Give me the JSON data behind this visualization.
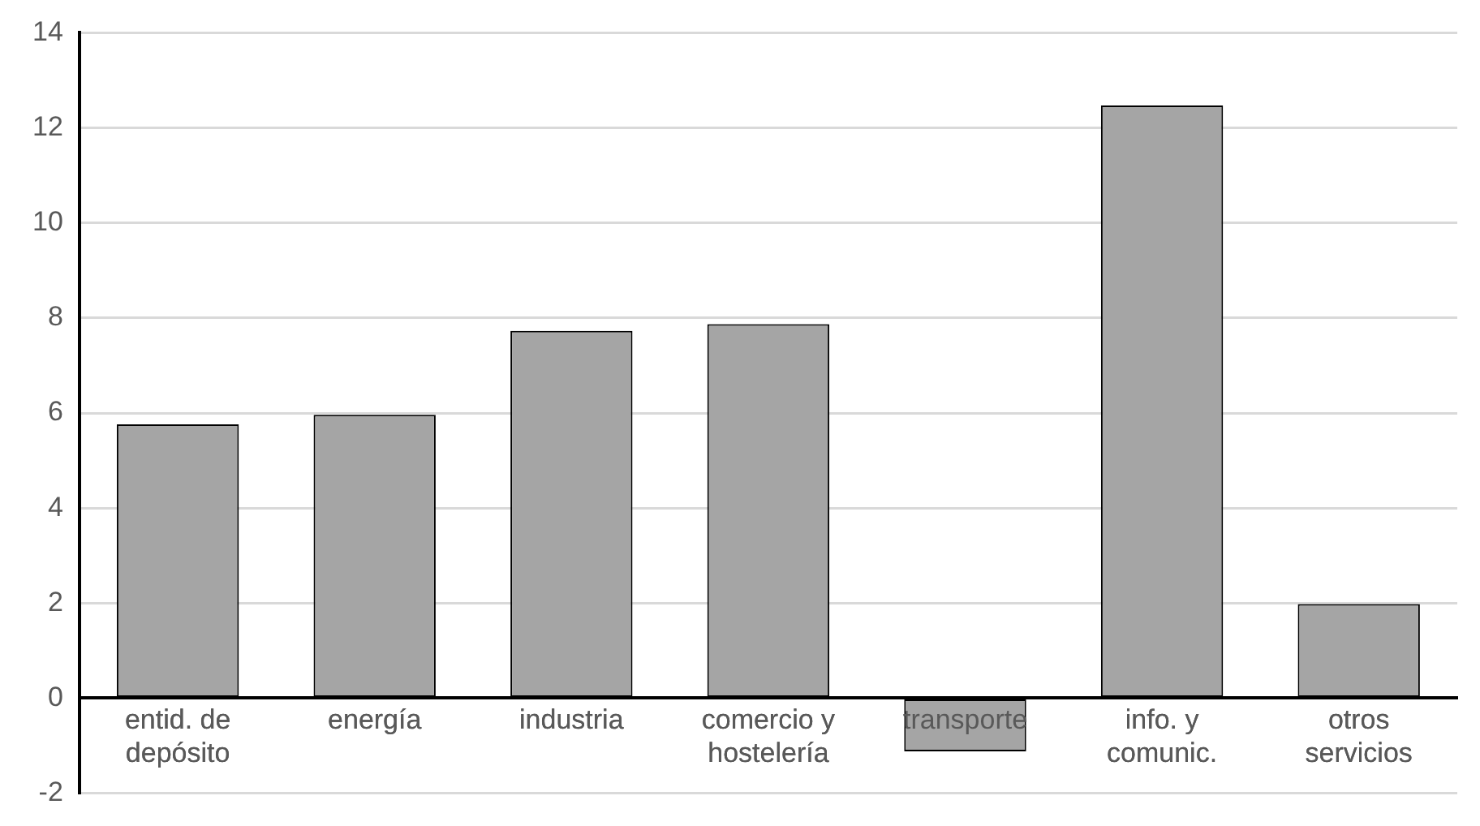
{
  "chart_data": {
    "type": "bar",
    "categories": [
      "entid. de depósito",
      "energía",
      "industria",
      "comercio y hostelería",
      "transporte",
      "info. y comunic.",
      "otros servicios"
    ],
    "values": [
      5.76,
      5.96,
      7.73,
      7.87,
      -1.12,
      12.47,
      1.98
    ],
    "color": "#a5a5a5",
    "ylim": [
      -2,
      14
    ],
    "yticks": [
      -2,
      0,
      2,
      4,
      6,
      8,
      10,
      12,
      14
    ],
    "grid": "y",
    "legend": false
  }
}
